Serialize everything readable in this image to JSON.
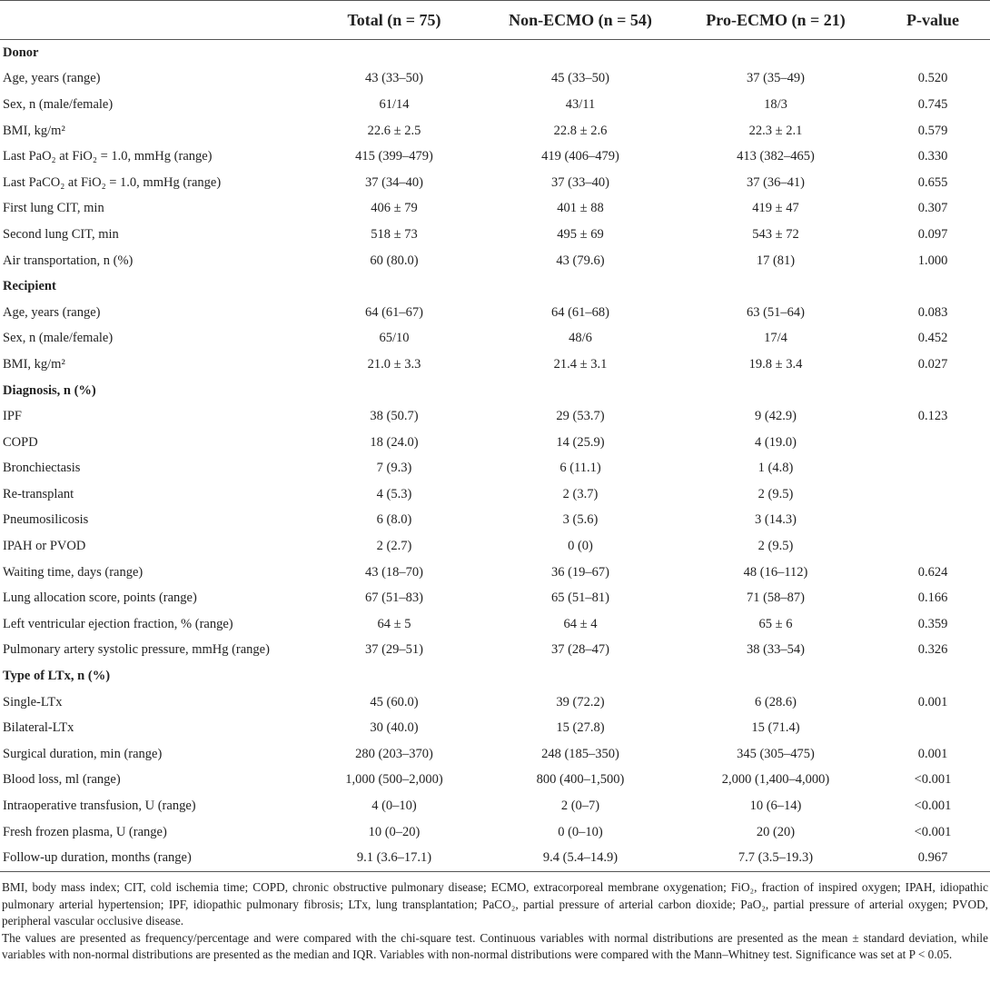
{
  "table": {
    "header": [
      "Total (n = 75)",
      "Non-ECMO (n = 54)",
      "Pro-ECMO (n = 21)",
      "P-value"
    ],
    "rows": [
      [
        "Donor"
      ],
      [
        "Age, years (range)",
        "43 (33–50)",
        "45 (33–50)",
        "37 (35–49)",
        "0.520"
      ],
      [
        "Sex, n (male/female)",
        "61/14",
        "43/11",
        "18/3",
        "0.745"
      ],
      [
        "BMI, kg/m²",
        "22.6 ± 2.5",
        "22.8 ± 2.6",
        "22.3 ± 2.1",
        "0.579"
      ],
      [
        "Last PaO₂ at FiO₂ = 1.0, mmHg (range)",
        "415 (399–479)",
        "419 (406–479)",
        "413 (382–465)",
        "0.330"
      ],
      [
        "Last PaCO₂ at FiO₂ = 1.0, mmHg (range)",
        "37 (34–40)",
        "37 (33–40)",
        "37 (36–41)",
        "0.655"
      ],
      [
        "First lung CIT, min",
        "406 ± 79",
        "401 ± 88",
        "419 ± 47",
        "0.307"
      ],
      [
        "Second lung CIT, min",
        "518 ± 73",
        "495 ± 69",
        "543 ± 72",
        "0.097"
      ],
      [
        "Air transportation, n (%)",
        "60 (80.0)",
        "43 (79.6)",
        "17 (81)",
        "1.000"
      ],
      [
        "Recipient"
      ],
      [
        "Age, years (range)",
        "64 (61–67)",
        "64 (61–68)",
        "63 (51–64)",
        "0.083"
      ],
      [
        "Sex, n (male/female)",
        "65/10",
        "48/6",
        "17/4",
        "0.452"
      ],
      [
        "BMI, kg/m²",
        "21.0 ± 3.3",
        "21.4 ± 3.1",
        "19.8 ± 3.4",
        "0.027"
      ],
      [
        "Diagnosis, n (%)"
      ],
      [
        "IPF",
        "38 (50.7)",
        "29 (53.7)",
        "9 (42.9)",
        "0.123"
      ],
      [
        "COPD",
        "18 (24.0)",
        "14 (25.9)",
        "4 (19.0)"
      ],
      [
        "Bronchiectasis",
        "7 (9.3)",
        "6 (11.1)",
        "1 (4.8)"
      ],
      [
        "Re-transplant",
        "4 (5.3)",
        "2 (3.7)",
        "2 (9.5)"
      ],
      [
        "Pneumosilicosis",
        "6 (8.0)",
        "3 (5.6)",
        "3 (14.3)"
      ],
      [
        "IPAH or PVOD",
        "2 (2.7)",
        "0 (0)",
        "2 (9.5)"
      ],
      [
        "Waiting time, days (range)",
        "43 (18–70)",
        "36 (19–67)",
        "48 (16–112)",
        "0.624"
      ],
      [
        "Lung allocation score, points (range)",
        "67 (51–83)",
        "65 (51–81)",
        "71 (58–87)",
        "0.166"
      ],
      [
        "Left ventricular ejection fraction, % (range)",
        "64 ± 5",
        "64 ± 4",
        "65 ± 6",
        "0.359"
      ],
      [
        "Pulmonary artery systolic pressure, mmHg (range)",
        "37 (29–51)",
        "37 (28–47)",
        "38 (33–54)",
        "0.326"
      ],
      [
        "Type of LTx, n (%)"
      ],
      [
        "Single-LTx",
        "45 (60.0)",
        "39 (72.2)",
        "6 (28.6)",
        "0.001"
      ],
      [
        "Bilateral-LTx",
        "30 (40.0)",
        "15 (27.8)",
        "15 (71.4)"
      ],
      [
        "Surgical duration, min (range)",
        "280 (203–370)",
        "248 (185–350)",
        "345 (305–475)",
        "0.001"
      ],
      [
        "Blood loss, ml (range)",
        "1,000 (500–2,000)",
        "800 (400–1,500)",
        "2,000 (1,400–4,000)",
        "<0.001"
      ],
      [
        "Intraoperative transfusion, U (range)",
        "4 (0–10)",
        "2 (0–7)",
        "10 (6–14)",
        "<0.001"
      ],
      [
        "Fresh frozen plasma, U (range)",
        "10 (0–20)",
        "0 (0–10)",
        "20 (20)",
        "<0.001"
      ],
      [
        "Follow-up duration, months (range)",
        "9.1 (3.6–17.1)",
        "9.4 (5.4–14.9)",
        "7.7 (3.5–19.3)",
        "0.967"
      ]
    ],
    "notes": [
      "BMI, body mass index; CIT, cold ischemia time; COPD, chronic obstructive pulmonary disease; ECMO, extracorporeal membrane oxygenation; FiO₂, fraction of inspired oxygen; IPAH, idiopathic pulmonary arterial hypertension; IPF, idiopathic pulmonary fibrosis; LTx, lung transplantation; PaCO₂, partial pressure of arterial carbon dioxide; PaO₂, partial pressure of arterial oxygen; PVOD, peripheral vascular occlusive disease.",
      "The values are presented as frequency/percentage and were compared with the chi-square test. Continuous variables with normal distributions are presented as the mean ± standard deviation, while variables with non-normal distributions are presented as the median and IQR. Variables with non-normal distributions were compared with the Mann–Whitney test. Significance was set at P < 0.05."
    ]
  }
}
